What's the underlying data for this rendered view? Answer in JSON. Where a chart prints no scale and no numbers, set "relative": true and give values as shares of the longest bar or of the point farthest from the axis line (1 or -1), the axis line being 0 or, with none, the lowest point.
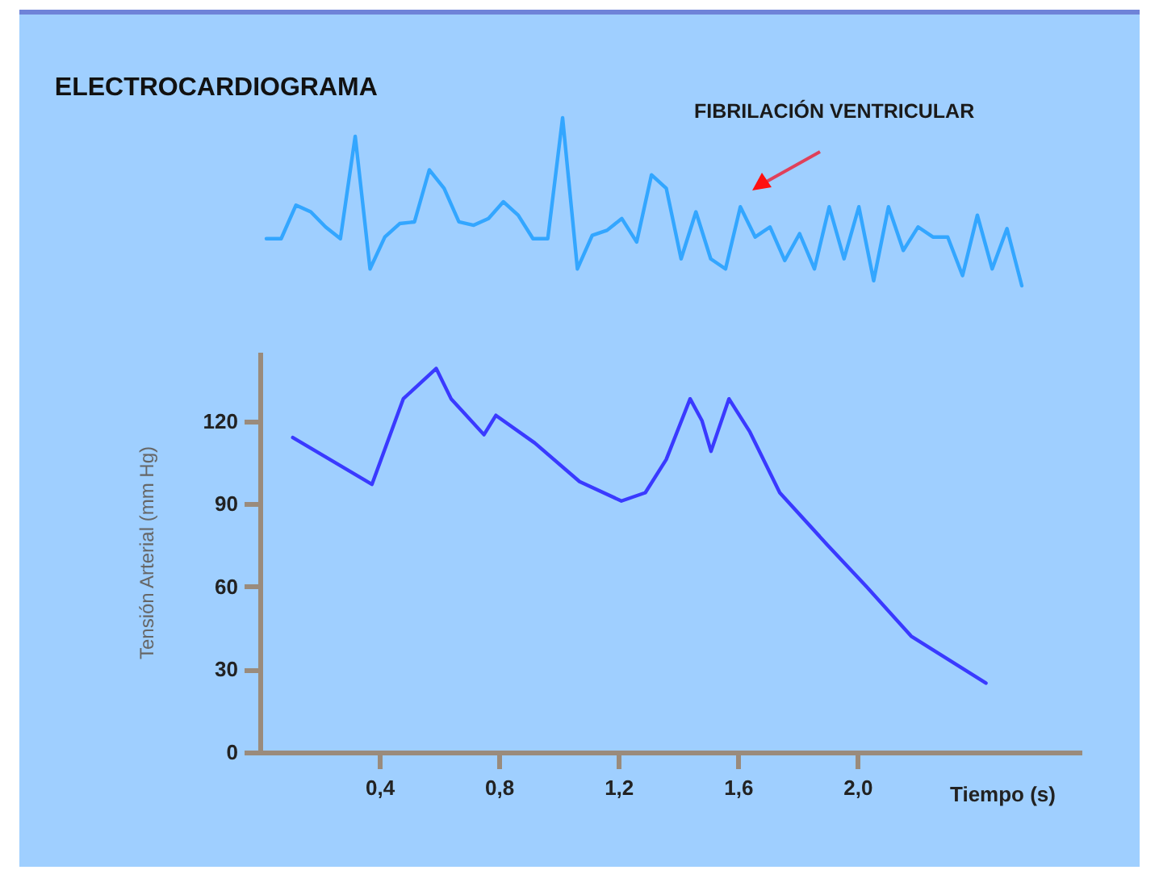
{
  "chart_data": [
    {
      "type": "line",
      "title": "ELECTROCARDIOGRAMA",
      "relative": true,
      "annotations": [
        "FIBRILACIÓN VENTRICULAR"
      ],
      "categories": [
        null,
        null,
        null,
        null,
        null,
        null,
        null,
        null,
        null,
        null,
        null,
        null,
        null,
        null,
        null,
        null,
        null,
        null,
        null,
        null,
        null,
        null,
        null,
        null,
        null,
        null,
        null,
        null,
        null,
        null,
        null,
        null,
        null,
        null,
        null,
        null,
        null,
        null,
        null,
        null,
        null,
        null,
        null,
        null,
        null,
        null,
        null,
        null,
        null,
        null,
        null,
        null
      ],
      "series": [
        {
          "color": "#33a6ff",
          "values": [
            0.28,
            0.28,
            0.48,
            0.44,
            0.35,
            0.28,
            0.89,
            0.1,
            0.29,
            0.37,
            0.38,
            0.69,
            0.58,
            0.38,
            0.36,
            0.4,
            0.5,
            0.42,
            0.28,
            0.28,
            1,
            0.1,
            0.3,
            0.33,
            0.4,
            0.26,
            0.66,
            0.58,
            0.16,
            0.44,
            0.16,
            0.1,
            0.47,
            0.29,
            0.35,
            0.15,
            0.31,
            0.1,
            0.47,
            0.16,
            0.47,
            0.03,
            0.47,
            0.21,
            0.35,
            0.29,
            0.29,
            0.06,
            0.42,
            0.1,
            0.34,
            0
          ]
        }
      ]
    },
    {
      "type": "line",
      "xlabel": "Tiempo (s)",
      "ylabel": "Tensión Arterial (mm Hg)",
      "xlim": [
        0,
        2.75
      ],
      "ylim": [
        0,
        145
      ],
      "xticks": [
        {
          "value": 0.4,
          "label": "0,4"
        },
        {
          "value": 0.8,
          "label": "0,8"
        },
        {
          "value": 1.2,
          "label": "1,2"
        },
        {
          "value": 1.6,
          "label": "1,6"
        },
        {
          "value": 2.0,
          "label": "2,0"
        }
      ],
      "yticks": [
        0,
        30,
        60,
        90,
        120
      ],
      "x": [
        0.11,
        0.375,
        0.48,
        0.59,
        0.64,
        0.75,
        0.79,
        0.92,
        1.07,
        1.21,
        1.29,
        1.36,
        1.44,
        1.48,
        1.51,
        1.57,
        1.64,
        1.74,
        1.9,
        2.03,
        2.18,
        2.43
      ],
      "series": [
        {
          "color": "#3a3aff",
          "values": [
            114,
            97,
            128,
            139,
            128,
            115,
            122,
            112,
            98,
            91,
            94,
            106,
            128,
            120,
            109,
            128,
            116,
            94,
            75,
            60,
            42,
            25
          ]
        }
      ]
    }
  ]
}
